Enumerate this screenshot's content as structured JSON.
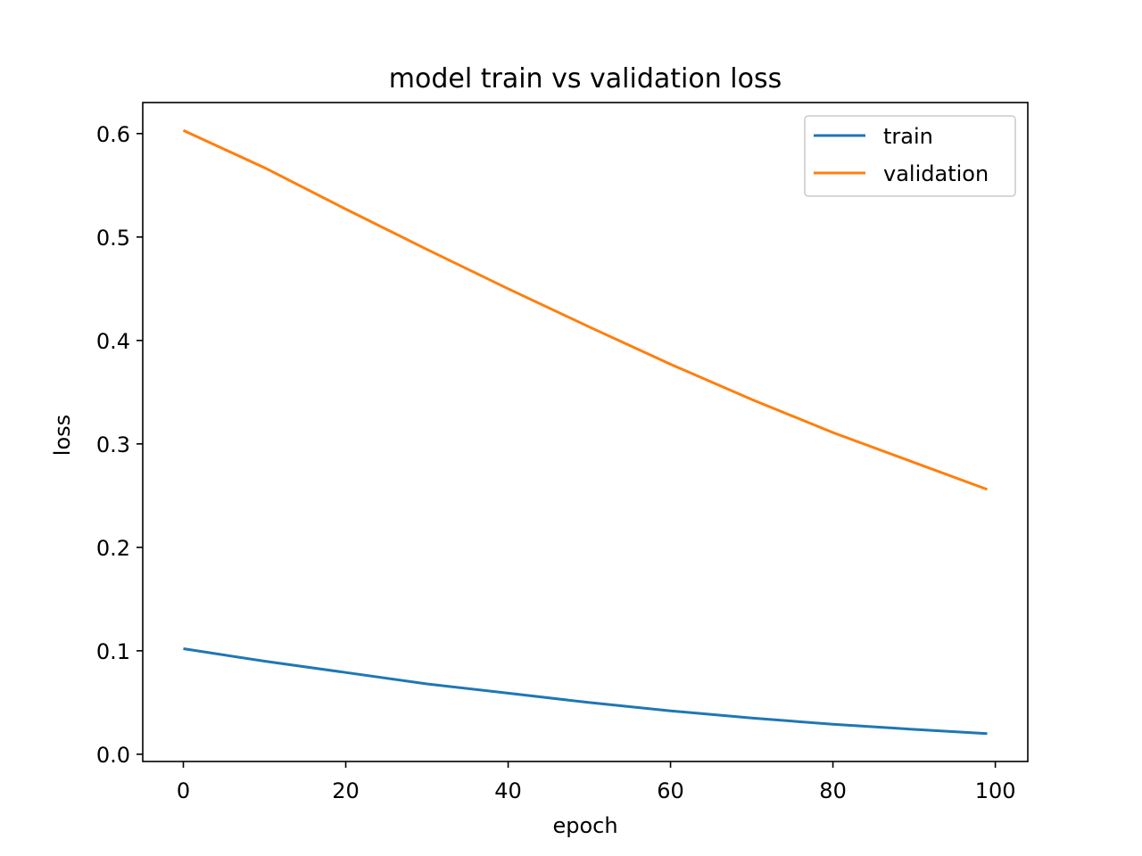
{
  "chart_data": {
    "type": "line",
    "title": "model train vs validation loss",
    "xlabel": "epoch",
    "ylabel": "loss",
    "xlim": [
      -5,
      104
    ],
    "ylim": [
      -0.007,
      0.63
    ],
    "xticks": [
      0,
      20,
      40,
      60,
      80,
      100
    ],
    "yticks": [
      0.0,
      0.1,
      0.2,
      0.3,
      0.4,
      0.5,
      0.6
    ],
    "xtick_labels": [
      "0",
      "20",
      "40",
      "60",
      "80",
      "100"
    ],
    "ytick_labels": [
      "0.0",
      "0.1",
      "0.2",
      "0.3",
      "0.4",
      "0.5",
      "0.6"
    ],
    "grid": false,
    "legend_position": "top-right",
    "series": [
      {
        "name": "train",
        "color": "#1f77b4",
        "x": [
          0,
          10,
          20,
          30,
          40,
          50,
          60,
          70,
          80,
          90,
          99
        ],
        "y": [
          0.102,
          0.09,
          0.079,
          0.068,
          0.059,
          0.05,
          0.042,
          0.035,
          0.029,
          0.024,
          0.02
        ]
      },
      {
        "name": "validation",
        "color": "#ff7f0e",
        "x": [
          0,
          10,
          20,
          30,
          40,
          50,
          60,
          70,
          80,
          90,
          99
        ],
        "y": [
          0.603,
          0.567,
          0.527,
          0.488,
          0.45,
          0.413,
          0.377,
          0.343,
          0.311,
          0.282,
          0.256
        ]
      }
    ]
  }
}
